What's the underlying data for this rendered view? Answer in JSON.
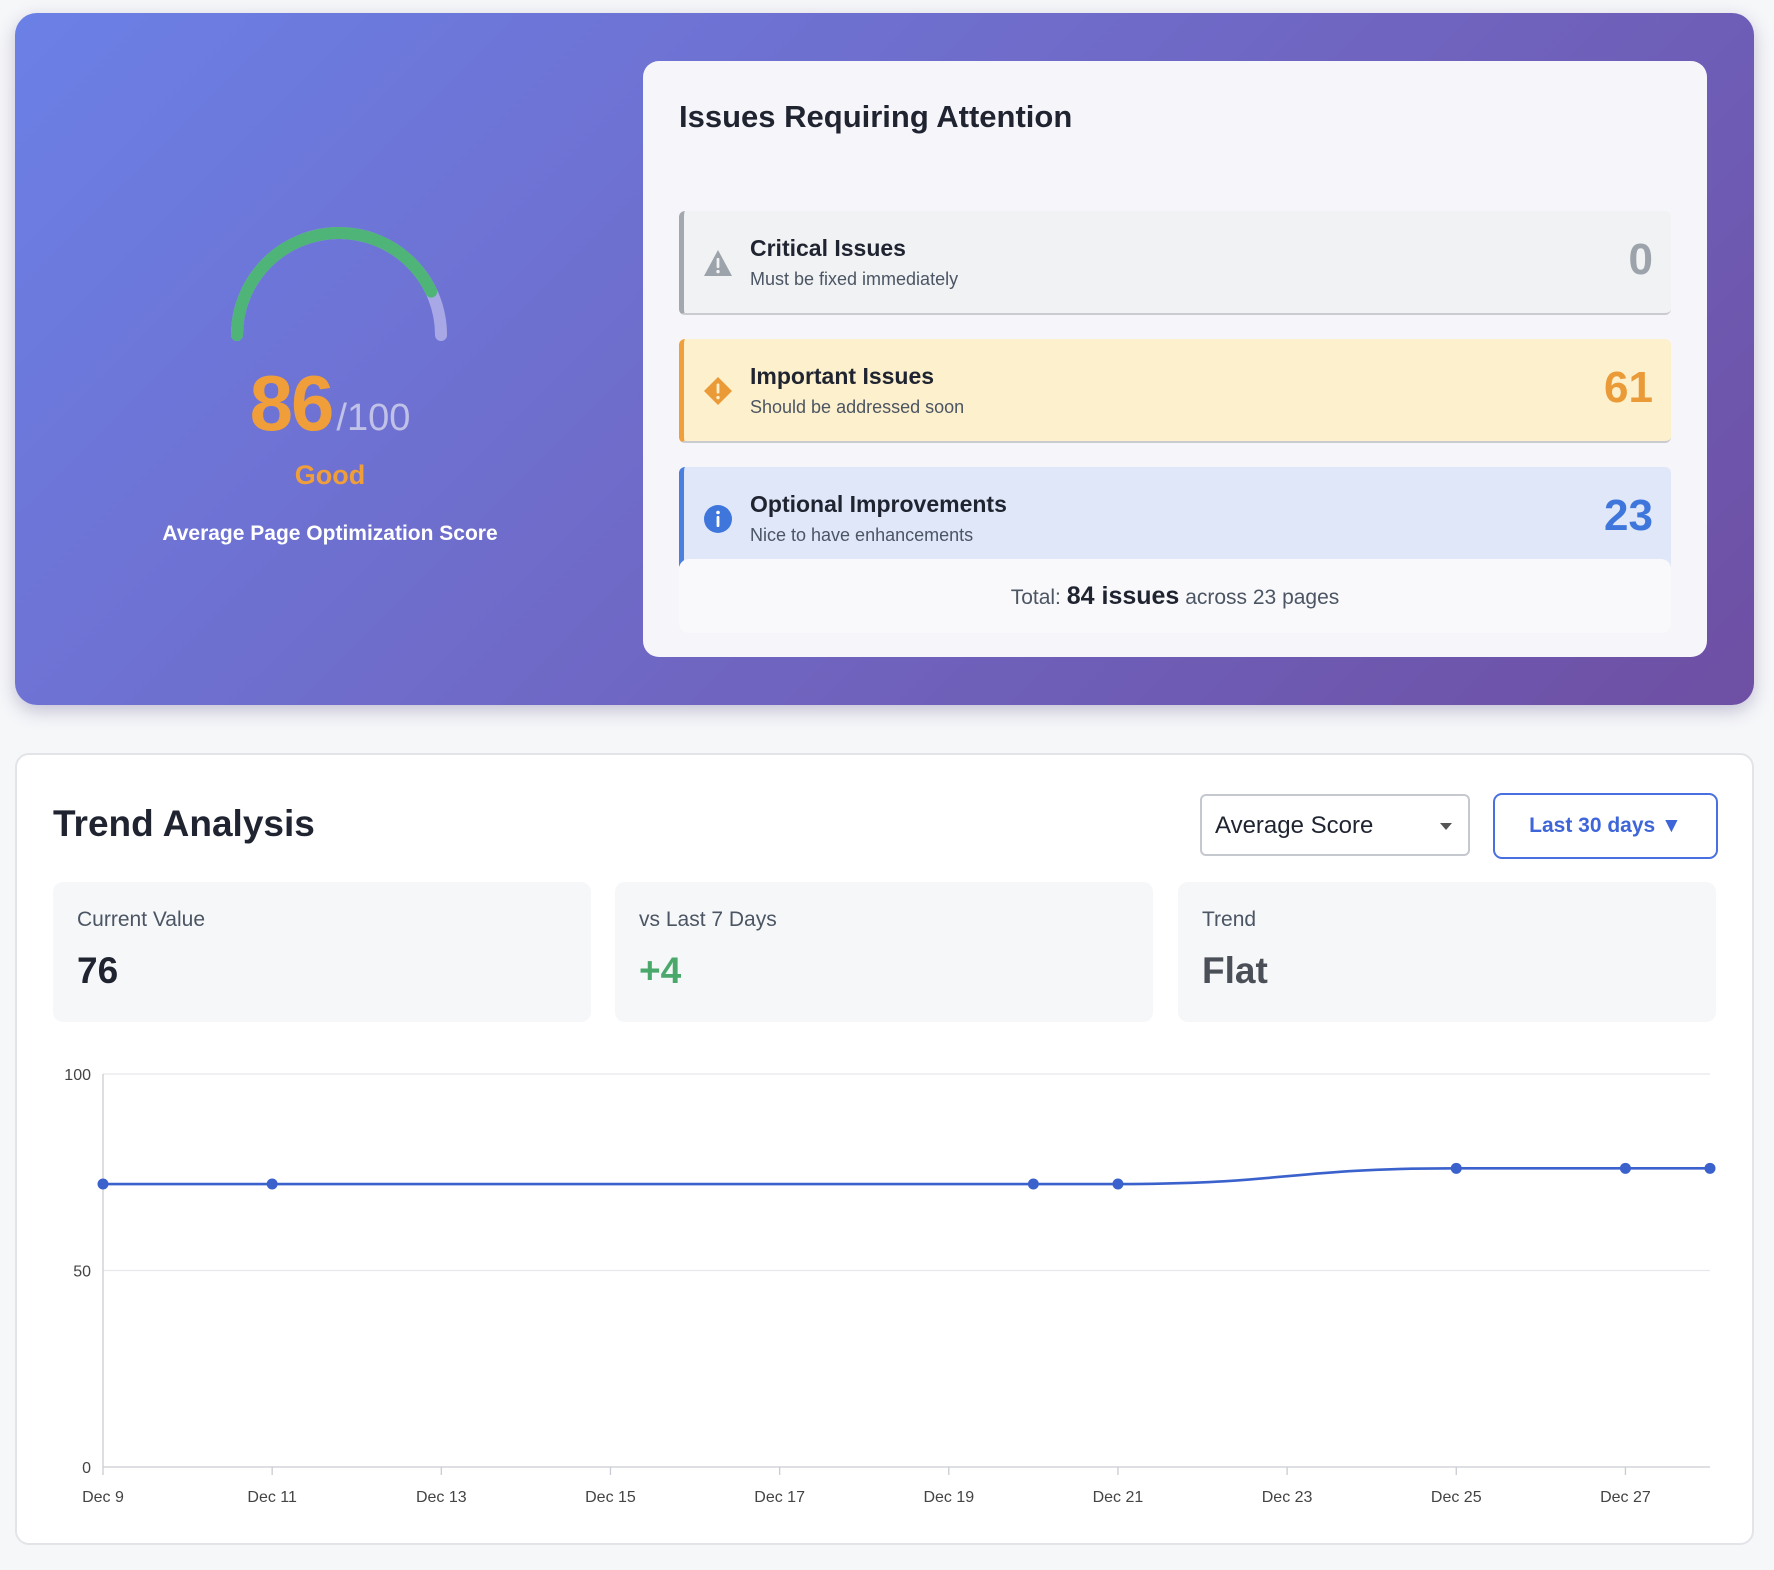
{
  "score_panel": {
    "score": "86",
    "max": "/100",
    "rating": "Good",
    "caption": "Average Page Optimization Score",
    "score_fraction": 0.86,
    "colors": {
      "arc_fill": "#4fb477",
      "arc_track": "#a9a8e6",
      "score": "#ef9e3a"
    }
  },
  "issues": {
    "title": "Issues Requiring Attention",
    "rows": [
      {
        "label": "Critical Issues",
        "description": "Must be fixed immediately",
        "count": "0",
        "icon": "warning-triangle-icon",
        "color": "#9ca3ab"
      },
      {
        "label": "Important Issues",
        "description": "Should be addressed soon",
        "count": "61",
        "icon": "warning-diamond-icon",
        "color": "#ea9a36"
      },
      {
        "label": "Optional Improvements",
        "description": "Nice to have enhancements",
        "count": "23",
        "icon": "info-circle-icon",
        "color": "#3f76dc"
      }
    ],
    "total": {
      "prefix": "Total:",
      "issues": "84 issues",
      "suffix": "across 23 pages"
    }
  },
  "trend": {
    "title": "Trend Analysis",
    "metric_select": "Average Score",
    "range_button": "Last 30 days ▼",
    "stats": [
      {
        "label": "Current Value",
        "value": "76"
      },
      {
        "label": "vs Last 7 Days",
        "value": "+4"
      },
      {
        "label": "Trend",
        "value": "Flat"
      }
    ]
  },
  "chart_data": {
    "type": "line",
    "title": "",
    "xlabel": "",
    "ylabel": "",
    "x_ticks": [
      "Dec 9",
      "Dec 11",
      "Dec 13",
      "Dec 15",
      "Dec 17",
      "Dec 19",
      "Dec 21",
      "Dec 23",
      "Dec 25",
      "Dec 27"
    ],
    "y_ticks": [
      0,
      50,
      100
    ],
    "ylim": [
      0,
      100
    ],
    "xlim_days": [
      "Dec 9",
      "Dec 28"
    ],
    "grid": true,
    "series": [
      {
        "color": "#3b62cc",
        "points": [
          {
            "x": "Dec 9",
            "y": 72
          },
          {
            "x": "Dec 11",
            "y": 72
          },
          {
            "x": "Dec 20",
            "y": 72
          },
          {
            "x": "Dec 21",
            "y": 72
          },
          {
            "x": "Dec 25",
            "y": 76
          },
          {
            "x": "Dec 27",
            "y": 76
          },
          {
            "x": "Dec 28",
            "y": 76
          }
        ]
      }
    ]
  }
}
